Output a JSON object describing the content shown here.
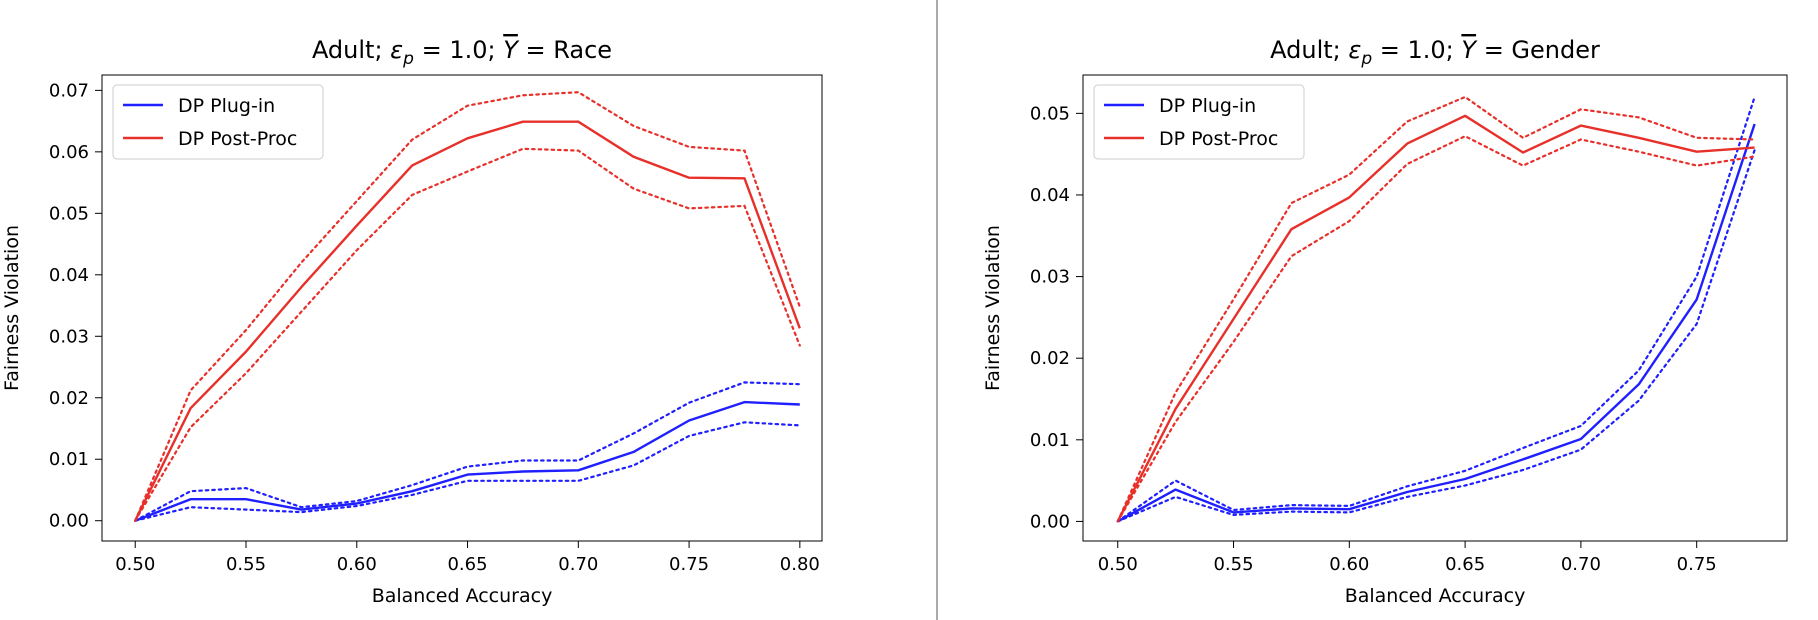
{
  "chart_data": [
    {
      "type": "line",
      "title": "Adult; εp = 1.0; Y = Race",
      "title_parts": {
        "prefix": "Adult; ",
        "epsilon": "ε",
        "epsilon_sub": "p",
        "eps_value": " = 1.0; ",
        "ybar": "Y",
        "suffix": " = Race"
      },
      "xlabel": "Balanced Accuracy",
      "ylabel": "Fairness Violation",
      "xlim": [
        0.485,
        0.81
      ],
      "ylim": [
        -0.0033,
        0.0725
      ],
      "xticks": [
        0.5,
        0.55,
        0.6,
        0.65,
        0.7,
        0.75,
        0.8
      ],
      "xtick_labels": [
        "0.50",
        "0.55",
        "0.60",
        "0.65",
        "0.70",
        "0.75",
        "0.80"
      ],
      "yticks": [
        0,
        0.01,
        0.02,
        0.03,
        0.04,
        0.05,
        0.06,
        0.07
      ],
      "ytick_labels": [
        "0.00",
        "0.01",
        "0.02",
        "0.03",
        "0.04",
        "0.05",
        "0.06",
        "0.07"
      ],
      "legend_position": "upper-left",
      "x": [
        0.5,
        0.525,
        0.55,
        0.575,
        0.6,
        0.625,
        0.65,
        0.675,
        0.7,
        0.725,
        0.75,
        0.775,
        0.8
      ],
      "series": [
        {
          "name": "DP Plug-in",
          "color": "#1f1fff",
          "values": [
            0.0,
            0.0035,
            0.0035,
            0.0018,
            0.0028,
            0.0048,
            0.0075,
            0.008,
            0.0082,
            0.0112,
            0.0163,
            0.0193,
            0.0189
          ],
          "upper": [
            0.0,
            0.0048,
            0.0053,
            0.0022,
            0.0032,
            0.0058,
            0.0088,
            0.0098,
            0.0098,
            0.0142,
            0.0192,
            0.0225,
            0.0222
          ],
          "lower": [
            0.0,
            0.0022,
            0.0018,
            0.0014,
            0.0024,
            0.0042,
            0.0065,
            0.0065,
            0.0065,
            0.009,
            0.0138,
            0.016,
            0.0155
          ]
        },
        {
          "name": "DP Post-Proc",
          "color": "#e8302a",
          "values": [
            0.0,
            0.0183,
            0.0275,
            0.038,
            0.048,
            0.0578,
            0.0622,
            0.0649,
            0.0649,
            0.0592,
            0.0558,
            0.0557,
            0.0313
          ],
          "upper": [
            0.0,
            0.0212,
            0.031,
            0.042,
            0.052,
            0.062,
            0.0675,
            0.0692,
            0.0697,
            0.0642,
            0.0608,
            0.0602,
            0.0348
          ],
          "lower": [
            0.0,
            0.0152,
            0.024,
            0.034,
            0.044,
            0.053,
            0.0568,
            0.0605,
            0.0602,
            0.054,
            0.0508,
            0.0512,
            0.0285
          ]
        }
      ]
    },
    {
      "type": "line",
      "title": "Adult; εp = 1.0; Y = Gender",
      "title_parts": {
        "prefix": "Adult; ",
        "epsilon": "ε",
        "epsilon_sub": "p",
        "eps_value": " = 1.0; ",
        "ybar": "Y",
        "suffix": " = Gender"
      },
      "xlabel": "Balanced Accuracy",
      "ylabel": "Fairness Violation",
      "xlim": [
        0.485,
        0.789
      ],
      "ylim": [
        -0.0024,
        0.0547
      ],
      "xticks": [
        0.5,
        0.55,
        0.6,
        0.65,
        0.7,
        0.75
      ],
      "xtick_labels": [
        "0.50",
        "0.55",
        "0.60",
        "0.65",
        "0.70",
        "0.75"
      ],
      "yticks": [
        0,
        0.01,
        0.02,
        0.03,
        0.04,
        0.05
      ],
      "ytick_labels": [
        "0.00",
        "0.01",
        "0.02",
        "0.03",
        "0.04",
        "0.05"
      ],
      "legend_position": "upper-left",
      "x": [
        0.5,
        0.525,
        0.55,
        0.575,
        0.6,
        0.625,
        0.65,
        0.675,
        0.7,
        0.725,
        0.75,
        0.775
      ],
      "series": [
        {
          "name": "DP Plug-in",
          "color": "#1f1fff",
          "values": [
            0.0,
            0.0039,
            0.0011,
            0.0016,
            0.0015,
            0.0036,
            0.0052,
            0.0076,
            0.0101,
            0.0168,
            0.0272,
            0.0487
          ],
          "upper": [
            0.0,
            0.005,
            0.0014,
            0.002,
            0.0019,
            0.0043,
            0.0062,
            0.009,
            0.0117,
            0.0185,
            0.03,
            0.052
          ],
          "lower": [
            0.0,
            0.003,
            0.0008,
            0.0012,
            0.0011,
            0.003,
            0.0044,
            0.0063,
            0.0088,
            0.0148,
            0.0242,
            0.0455
          ]
        },
        {
          "name": "DP Post-Proc",
          "color": "#e8302a",
          "values": [
            0.0,
            0.0138,
            0.0248,
            0.0358,
            0.0397,
            0.0463,
            0.0497,
            0.0452,
            0.0485,
            0.047,
            0.0453,
            0.0458
          ],
          "upper": [
            0.0,
            0.0158,
            0.0272,
            0.039,
            0.0425,
            0.049,
            0.052,
            0.047,
            0.0505,
            0.0495,
            0.047,
            0.0468
          ],
          "lower": [
            0.0,
            0.0122,
            0.022,
            0.0325,
            0.0368,
            0.0438,
            0.0472,
            0.0436,
            0.0468,
            0.0453,
            0.0436,
            0.0447
          ]
        }
      ]
    }
  ]
}
